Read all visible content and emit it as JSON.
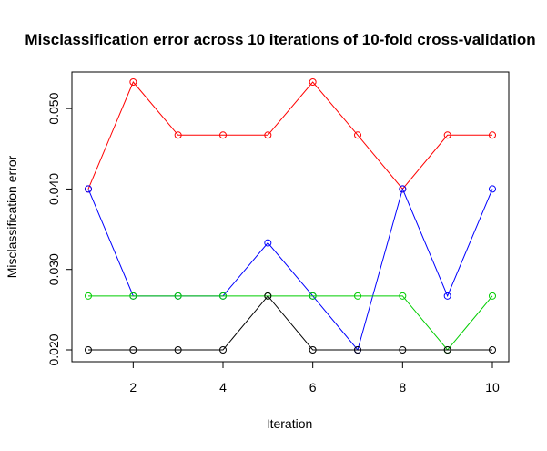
{
  "chart_data": {
    "type": "line",
    "title": "Misclassification error across 10 iterations of 10-fold cross-validation",
    "xlabel": "Iteration",
    "ylabel": "Misclassification error",
    "x": [
      1,
      2,
      3,
      4,
      5,
      6,
      7,
      8,
      9,
      10
    ],
    "xlim": [
      1,
      10
    ],
    "ylim": [
      0.02,
      0.0533
    ],
    "xticks": [
      2,
      4,
      6,
      8,
      10
    ],
    "xtick_labels": [
      "2",
      "4",
      "6",
      "8",
      "10"
    ],
    "yticks": [
      0.02,
      0.03,
      0.04,
      0.05
    ],
    "ytick_labels": [
      "0.020",
      "0.030",
      "0.040",
      "0.050"
    ],
    "grid": false,
    "legend": "none",
    "marker": "open-circle",
    "series": [
      {
        "color": "#ff0000",
        "values": [
          0.04,
          0.0533,
          0.0467,
          0.0467,
          0.0467,
          0.0533,
          0.0467,
          0.04,
          0.0467,
          0.0467
        ]
      },
      {
        "color": "#0000ff",
        "values": [
          0.04,
          0.0267,
          0.0267,
          0.0267,
          0.0333,
          0.0267,
          0.02,
          0.04,
          0.0267,
          0.04
        ]
      },
      {
        "color": "#00cd00",
        "values": [
          0.0267,
          0.0267,
          0.0267,
          0.0267,
          0.0267,
          0.0267,
          0.0267,
          0.0267,
          0.02,
          0.0267
        ]
      },
      {
        "color": "#000000",
        "values": [
          0.02,
          0.02,
          0.02,
          0.02,
          0.0267,
          0.02,
          0.02,
          0.02,
          0.02,
          0.02
        ]
      }
    ]
  }
}
